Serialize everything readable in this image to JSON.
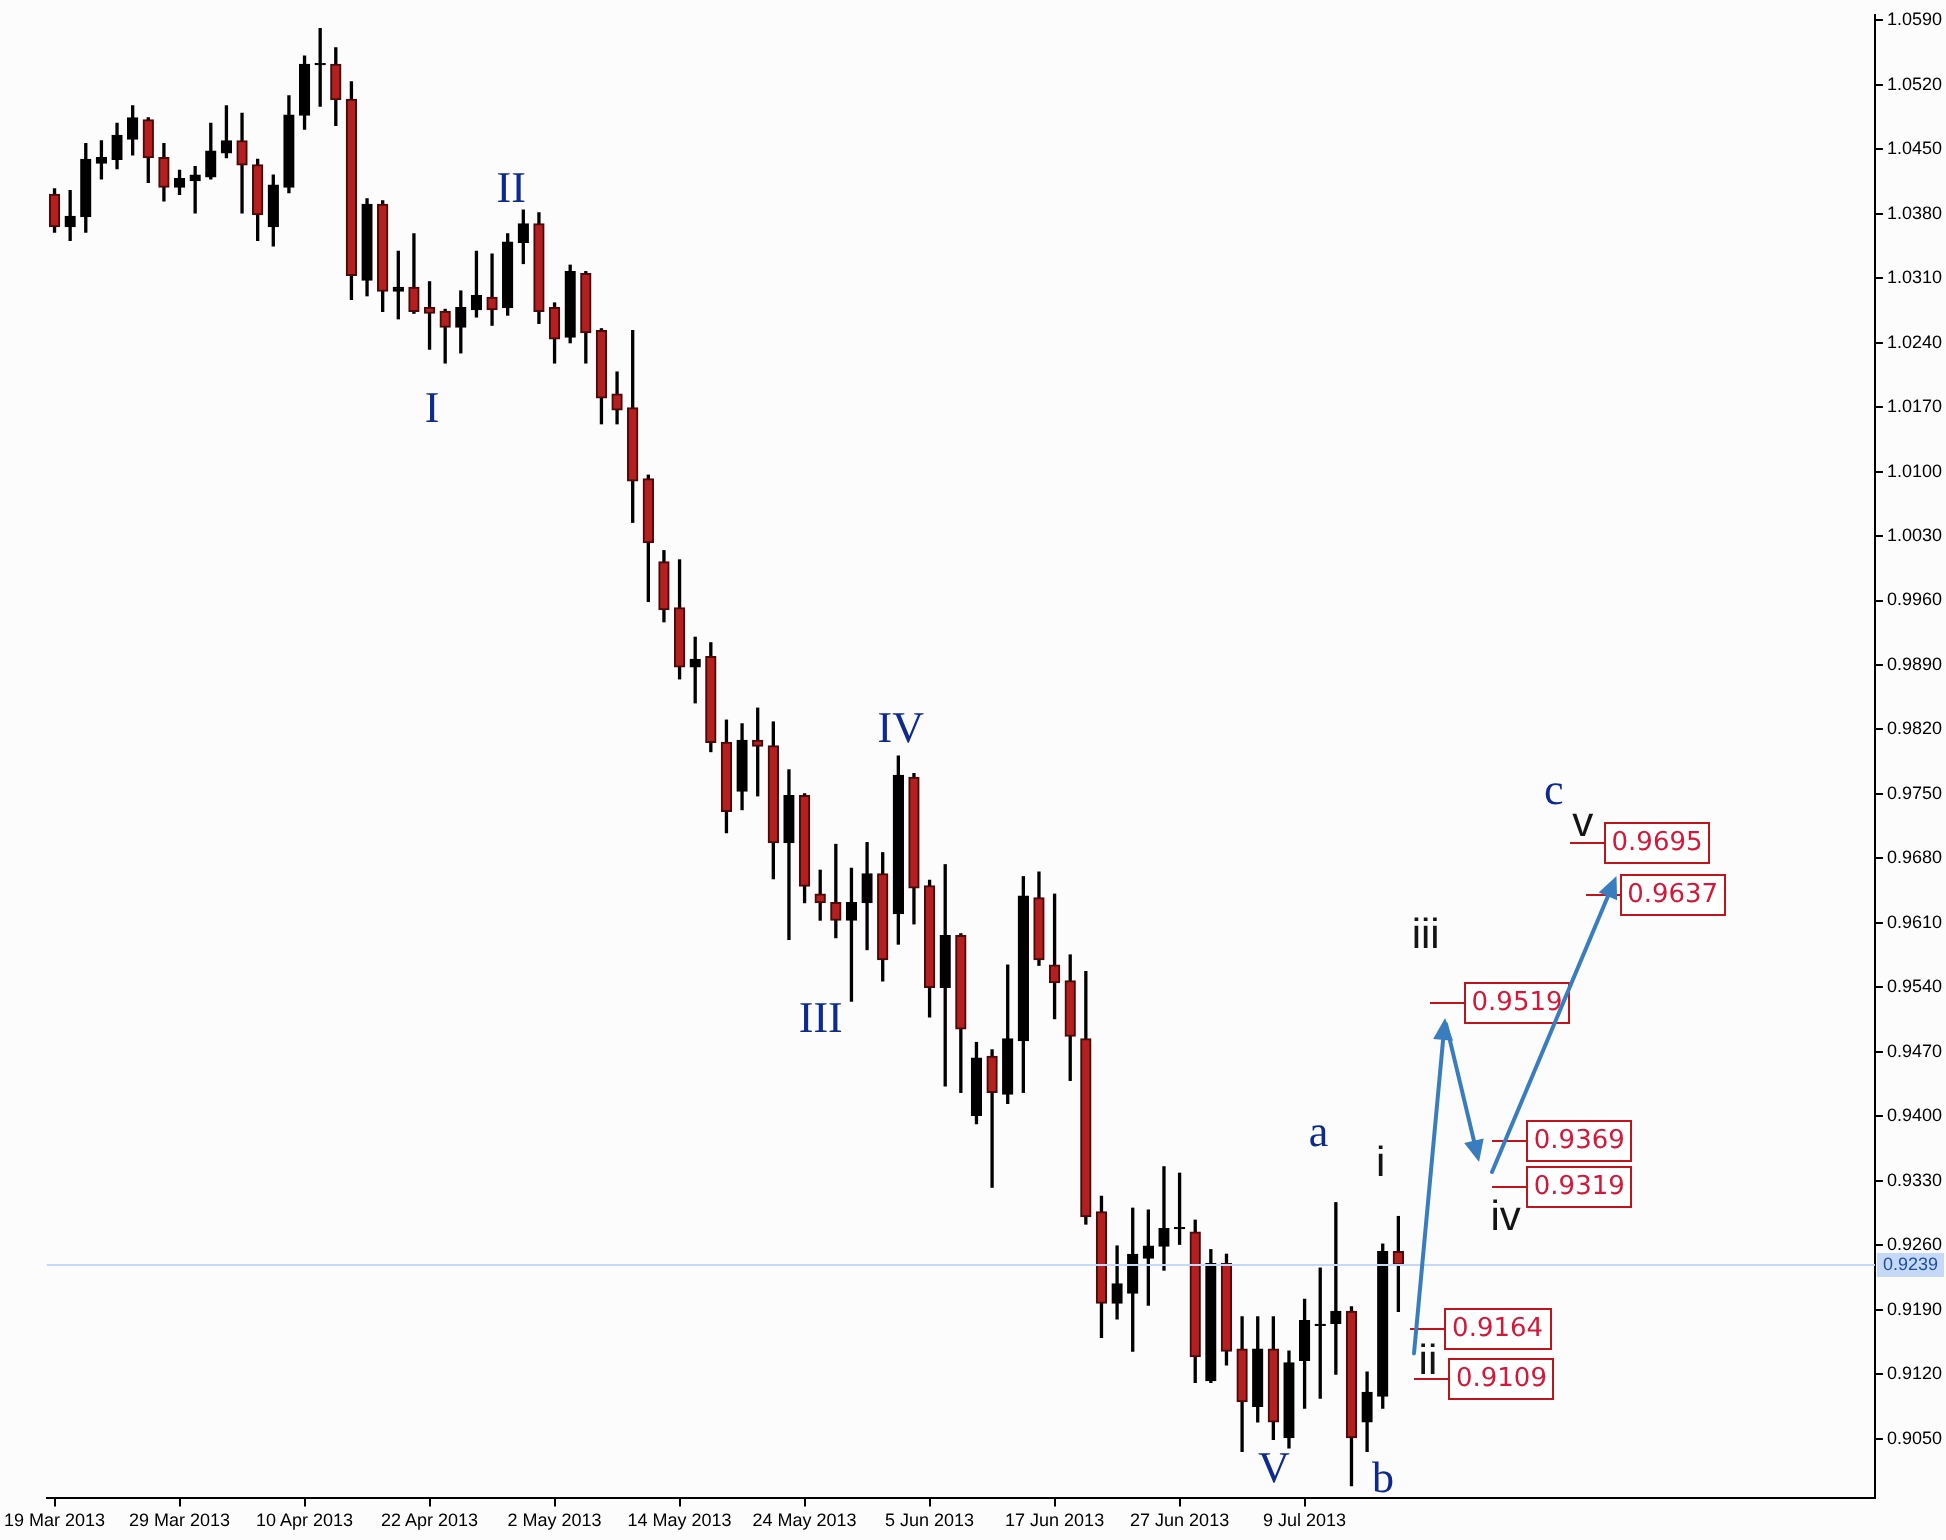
{
  "chart_data": {
    "type": "candlestick",
    "categories": [
      "19 Mar 2013",
      null,
      null,
      null,
      null,
      null,
      null,
      null,
      "29 Mar 2013",
      null,
      null,
      null,
      null,
      null,
      null,
      null,
      "10 Apr 2013",
      null,
      null,
      null,
      null,
      null,
      null,
      null,
      "22 Apr 2013",
      null,
      null,
      null,
      null,
      null,
      null,
      null,
      "2 May 2013",
      null,
      null,
      null,
      null,
      null,
      null,
      null,
      "14 May 2013",
      null,
      null,
      null,
      null,
      null,
      null,
      null,
      "24 May 2013",
      null,
      null,
      null,
      null,
      null,
      null,
      null,
      "5 Jun 2013",
      null,
      null,
      null,
      null,
      null,
      null,
      null,
      "17 Jun 2013",
      null,
      null,
      null,
      null,
      null,
      null,
      null,
      "27 Jun 2013",
      null,
      null,
      null,
      null,
      null,
      null,
      null,
      "9 Jul 2013",
      null,
      null,
      null,
      null,
      null,
      null,
      null,
      null,
      null,
      null,
      null,
      null,
      null,
      null,
      null,
      null,
      null,
      null,
      null,
      null,
      null,
      null,
      null,
      null,
      null,
      null,
      null,
      null,
      null,
      null,
      null,
      null,
      null,
      null,
      null,
      null
    ],
    "ohlc": [
      [
        1.0401,
        1.0407,
        1.036,
        1.0366
      ],
      [
        1.0366,
        1.0405,
        1.0351,
        1.0377
      ],
      [
        1.0377,
        1.0456,
        1.036,
        1.0439
      ],
      [
        1.0435,
        1.0459,
        1.0418,
        1.0441
      ],
      [
        1.0439,
        1.0478,
        1.0429,
        1.0465
      ],
      [
        1.0461,
        1.0497,
        1.0444,
        1.0484
      ],
      [
        1.0482,
        1.0484,
        1.0414,
        1.0441
      ],
      [
        1.0441,
        1.0456,
        1.0394,
        1.0409
      ],
      [
        1.0409,
        1.0427,
        1.0401,
        1.0418
      ],
      [
        1.0416,
        1.0431,
        1.0381,
        1.0422
      ],
      [
        1.042,
        1.0478,
        1.0418,
        1.0448
      ],
      [
        1.0446,
        1.0497,
        1.0441,
        1.0459
      ],
      [
        1.0459,
        1.0489,
        1.0381,
        1.0433
      ],
      [
        1.0433,
        1.0439,
        1.0351,
        1.0379
      ],
      [
        1.0366,
        1.0422,
        1.0345,
        1.0411
      ],
      [
        1.0409,
        1.0508,
        1.0403,
        1.0487
      ],
      [
        1.0487,
        1.0551,
        1.0472,
        1.0542
      ],
      [
        1.0542,
        1.0581,
        1.0497,
        1.0543
      ],
      [
        1.0542,
        1.056,
        1.0476,
        1.0504
      ],
      [
        1.0504,
        1.0523,
        1.0287,
        1.0313
      ],
      [
        1.0308,
        1.0396,
        1.0291,
        1.039
      ],
      [
        1.039,
        1.0394,
        1.0274,
        1.0296
      ],
      [
        1.0296,
        1.0339,
        1.0266,
        1.03
      ],
      [
        1.03,
        1.0358,
        1.0272,
        1.0274
      ],
      [
        1.0278,
        1.0306,
        1.0233,
        1.0272
      ],
      [
        1.0274,
        1.0276,
        1.0218,
        1.0257
      ],
      [
        1.0257,
        1.0296,
        1.0229,
        1.0278
      ],
      [
        1.0276,
        1.0339,
        1.0268,
        1.0291
      ],
      [
        1.0289,
        1.0336,
        1.0259,
        1.0276
      ],
      [
        1.0278,
        1.0358,
        1.027,
        1.0349
      ],
      [
        1.0349,
        1.0384,
        1.0326,
        1.0369
      ],
      [
        1.0369,
        1.0381,
        1.0261,
        1.0274
      ],
      [
        1.0278,
        1.0283,
        1.0218,
        1.0244
      ],
      [
        1.0246,
        1.0324,
        1.024,
        1.0317
      ],
      [
        1.0315,
        1.0317,
        1.0218,
        1.0251
      ],
      [
        1.0253,
        1.0255,
        1.0152,
        1.018
      ],
      [
        1.0184,
        1.0208,
        1.0152,
        1.0167
      ],
      [
        1.0169,
        1.0253,
        1.0045,
        1.009
      ],
      [
        1.0092,
        1.0096,
        0.9959,
        1.0023
      ],
      [
        1.0002,
        1.0014,
        0.9937,
        0.995
      ],
      [
        0.9952,
        1.0004,
        0.9875,
        0.9888
      ],
      [
        0.9888,
        0.992,
        0.9849,
        0.9896
      ],
      [
        0.9899,
        0.9914,
        0.9796,
        0.9806
      ],
      [
        0.9806,
        0.983,
        0.9708,
        0.9731
      ],
      [
        0.9753,
        0.9826,
        0.9733,
        0.9808
      ],
      [
        0.9808,
        0.9843,
        0.9748,
        0.9802
      ],
      [
        0.9802,
        0.9828,
        0.9658,
        0.9697
      ],
      [
        0.9697,
        0.9776,
        0.9592,
        0.9748
      ],
      [
        0.9748,
        0.975,
        0.9632,
        0.965
      ],
      [
        0.9641,
        0.9667,
        0.9613,
        0.9632
      ],
      [
        0.9632,
        0.9695,
        0.9594,
        0.9613
      ],
      [
        0.9613,
        0.9669,
        0.9525,
        0.9632
      ],
      [
        0.9632,
        0.9697,
        0.9581,
        0.9663
      ],
      [
        0.9663,
        0.9686,
        0.9547,
        0.957
      ],
      [
        0.962,
        0.9791,
        0.9587,
        0.977
      ],
      [
        0.9768,
        0.9772,
        0.9609,
        0.9648
      ],
      [
        0.965,
        0.9656,
        0.9508,
        0.954
      ],
      [
        0.954,
        0.9673,
        0.9433,
        0.9596
      ],
      [
        0.9596,
        0.9598,
        0.9426,
        0.9495
      ],
      [
        0.9401,
        0.948,
        0.9392,
        0.9463
      ],
      [
        0.9465,
        0.9472,
        0.9323,
        0.9426
      ],
      [
        0.9424,
        0.9564,
        0.9414,
        0.9484
      ],
      [
        0.9482,
        0.966,
        0.9426,
        0.9639
      ],
      [
        0.9637,
        0.9665,
        0.9564,
        0.957
      ],
      [
        0.9564,
        0.9641,
        0.9506,
        0.9545
      ],
      [
        0.9547,
        0.9575,
        0.9439,
        0.9487
      ],
      [
        0.9484,
        0.9557,
        0.9283,
        0.9291
      ],
      [
        0.9296,
        0.9313,
        0.916,
        0.9197
      ],
      [
        0.9197,
        0.9259,
        0.918,
        0.9218
      ],
      [
        0.9208,
        0.93,
        0.9145,
        0.925
      ],
      [
        0.9246,
        0.9298,
        0.9195,
        0.9259
      ],
      [
        0.9259,
        0.9345,
        0.9233,
        0.9278
      ],
      [
        0.9278,
        0.9338,
        0.9261,
        0.9279
      ],
      [
        0.9274,
        0.9287,
        0.9111,
        0.9139
      ],
      [
        0.9113,
        0.9255,
        0.9111,
        0.924
      ],
      [
        0.924,
        0.925,
        0.913,
        0.9145
      ],
      [
        0.9147,
        0.9182,
        0.9036,
        0.909
      ],
      [
        0.9085,
        0.9182,
        0.9068,
        0.9147
      ],
      [
        0.9147,
        0.9182,
        0.9049,
        0.9068
      ],
      [
        0.9051,
        0.9145,
        0.904,
        0.9132
      ],
      [
        0.9135,
        0.9201,
        0.9083,
        0.9178
      ],
      [
        0.9173,
        0.9235,
        0.9094,
        0.9174
      ],
      [
        0.9175,
        0.9306,
        0.912,
        0.9188
      ],
      [
        0.9188,
        0.9193,
        0.8999,
        0.9051
      ],
      [
        0.9068,
        0.9122,
        0.9036,
        0.91
      ],
      [
        0.9096,
        0.9261,
        0.9083,
        0.9253
      ],
      [
        0.9253,
        0.9291,
        0.9188,
        0.9239
      ],
      null,
      null,
      null,
      null,
      null,
      null,
      null,
      null,
      null,
      null,
      null,
      null,
      null,
      null,
      null,
      null,
      null,
      null,
      null,
      null,
      null,
      null,
      null,
      null,
      null,
      null,
      null,
      null,
      null,
      null
    ],
    "ylim": [
      0.8985,
      1.0596
    ],
    "yticks": [
      {
        "value": 1.059,
        "label": "1.0590"
      },
      {
        "value": 1.052,
        "label": "1.0520"
      },
      {
        "value": 1.045,
        "label": "1.0450"
      },
      {
        "value": 1.038,
        "label": "1.0380"
      },
      {
        "value": 1.031,
        "label": "1.0310"
      },
      {
        "value": 1.024,
        "label": "1.0240"
      },
      {
        "value": 1.017,
        "label": "1.0170"
      },
      {
        "value": 1.01,
        "label": "1.0100"
      },
      {
        "value": 1.003,
        "label": "1.0030"
      },
      {
        "value": 0.996,
        "label": "0.9960"
      },
      {
        "value": 0.989,
        "label": "0.9890"
      },
      {
        "value": 0.982,
        "label": "0.9820"
      },
      {
        "value": 0.975,
        "label": "0.9750"
      },
      {
        "value": 0.968,
        "label": "0.9680"
      },
      {
        "value": 0.961,
        "label": "0.9610"
      },
      {
        "value": 0.954,
        "label": "0.9540"
      },
      {
        "value": 0.947,
        "label": "0.9470"
      },
      {
        "value": 0.94,
        "label": "0.9400"
      },
      {
        "value": 0.933,
        "label": "0.9330"
      },
      {
        "value": 0.926,
        "label": "0.9260"
      },
      {
        "value": 0.919,
        "label": "0.9190"
      },
      {
        "value": 0.912,
        "label": "0.9120"
      },
      {
        "value": 0.905,
        "label": "0.9050"
      }
    ],
    "ref_lines": [
      {
        "axis": "y",
        "value": 0.9239,
        "label": "0.9239",
        "color": "#c5d8f7"
      }
    ],
    "annotations": [
      "I",
      "II",
      "III",
      "IV",
      "V",
      "a",
      "b",
      "c",
      "i",
      "ii",
      "iii",
      "iv",
      "v",
      "0.9695",
      "0.9637",
      "0.9519",
      "0.9369",
      "0.9319",
      "0.9164",
      "0.9109"
    ]
  }
}
